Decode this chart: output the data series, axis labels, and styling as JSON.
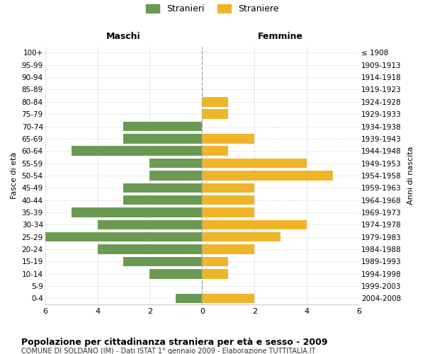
{
  "age_groups": [
    "100+",
    "95-99",
    "90-94",
    "85-89",
    "80-84",
    "75-79",
    "70-74",
    "65-69",
    "60-64",
    "55-59",
    "50-54",
    "45-49",
    "40-44",
    "35-39",
    "30-34",
    "25-29",
    "20-24",
    "15-19",
    "10-14",
    "5-9",
    "0-4"
  ],
  "birth_years": [
    "≤ 1908",
    "1909-1913",
    "1914-1918",
    "1919-1923",
    "1924-1928",
    "1929-1933",
    "1934-1938",
    "1939-1943",
    "1944-1948",
    "1949-1953",
    "1954-1958",
    "1959-1963",
    "1964-1968",
    "1969-1973",
    "1974-1978",
    "1979-1983",
    "1984-1988",
    "1989-1993",
    "1994-1998",
    "1999-2003",
    "2004-2008"
  ],
  "maschi": [
    0,
    0,
    0,
    0,
    0,
    0,
    3,
    3,
    5,
    2,
    2,
    3,
    3,
    5,
    4,
    6,
    4,
    3,
    2,
    0,
    1
  ],
  "femmine": [
    0,
    0,
    0,
    0,
    1,
    1,
    0,
    2,
    1,
    4,
    5,
    2,
    2,
    2,
    4,
    3,
    2,
    1,
    1,
    0,
    2
  ],
  "color_maschi": "#6a9a52",
  "color_femmine": "#f0b429",
  "title": "Popolazione per cittadinanza straniera per età e sesso - 2009",
  "subtitle": "COMUNE DI SOLDANO (IM) - Dati ISTAT 1° gennaio 2009 - Elaborazione TUTTITALIA.IT",
  "header_left": "Maschi",
  "header_right": "Femmine",
  "ylabel_left": "Fasce di età",
  "ylabel_right": "Anni di nascita",
  "legend_maschi": "Stranieri",
  "legend_femmine": "Straniere",
  "xlim": 6,
  "background_color": "#ffffff",
  "grid_color": "#cccccc",
  "grid_dotted_color": "#cccccc"
}
